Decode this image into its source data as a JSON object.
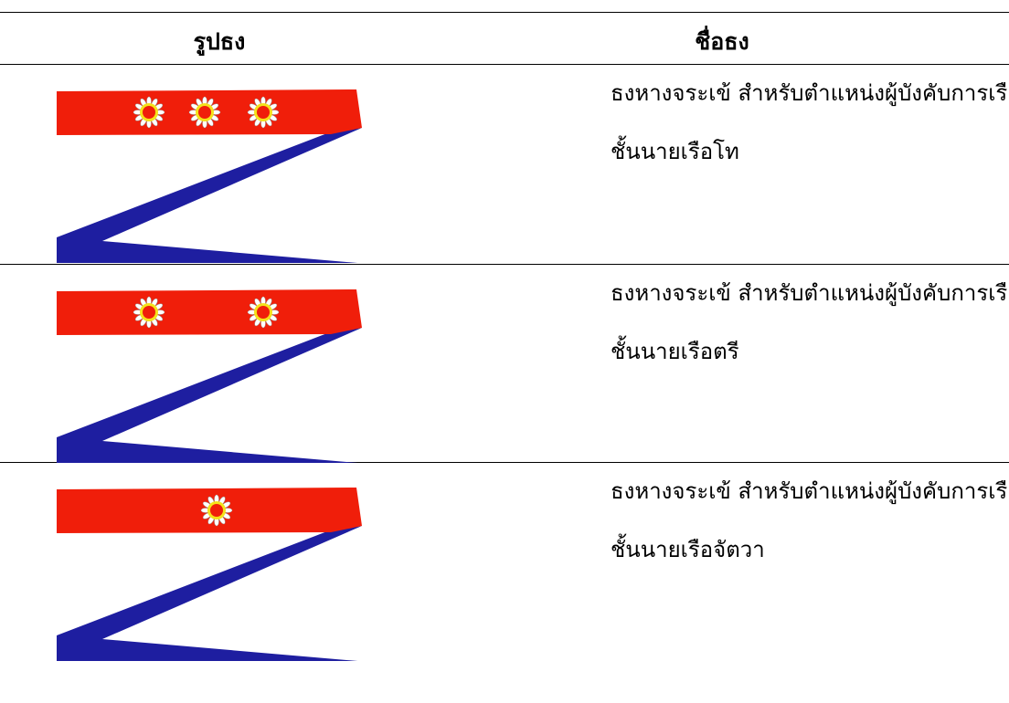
{
  "table": {
    "headers": [
      "รูปธง",
      "ชื่อธง"
    ],
    "rows": [
      [
        "ธงหางจระเข้ สำหรับตำแหน่งผู้บังคับการเรือ",
        "ชั้นนายเรือโท"
      ],
      [
        "ธงหางจระเข้ สำหรับตำแหน่งผู้บังคับการเรือ",
        "ชั้นนายเรือตรี"
      ],
      [
        "ธงหางจระเข้ สำหรับตำแหน่งผู้บังคับการเรือ",
        "ชั้นนายเรือจัตวา"
      ]
    ]
  }
}
